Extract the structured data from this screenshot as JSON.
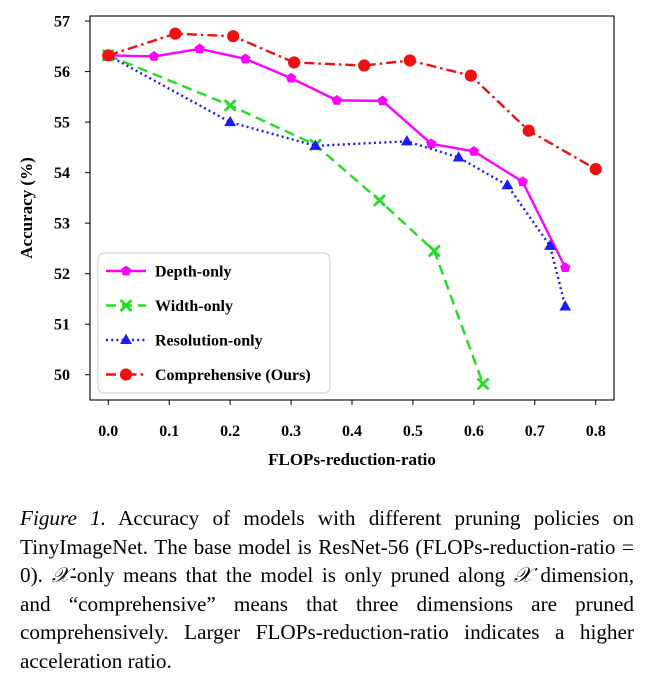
{
  "chart_data": {
    "type": "line",
    "xlabel": "FLOPs-reduction-ratio",
    "ylabel": "Accuracy (%)",
    "xlim": [
      -0.03,
      0.83
    ],
    "ylim": [
      49.5,
      57.1
    ],
    "xticks": [
      0.0,
      0.1,
      0.2,
      0.3,
      0.4,
      0.5,
      0.6,
      0.7,
      0.8
    ],
    "xtick_labels": [
      "0.0",
      "0.1",
      "0.2",
      "0.3",
      "0.4",
      "0.5",
      "0.6",
      "0.7",
      "0.8"
    ],
    "yticks": [
      50,
      51,
      52,
      53,
      54,
      55,
      56,
      57
    ],
    "ytick_labels": [
      "50",
      "51",
      "52",
      "53",
      "54",
      "55",
      "56",
      "57"
    ],
    "grid": false,
    "legend_position": "bottom-left",
    "series": [
      {
        "name": "Depth-only",
        "color": "#ff00ff",
        "line_style": "solid",
        "marker": "pentagon",
        "points": [
          [
            0.0,
            56.32
          ],
          [
            0.075,
            56.3
          ],
          [
            0.15,
            56.45
          ],
          [
            0.225,
            56.25
          ],
          [
            0.3,
            55.87
          ],
          [
            0.375,
            55.43
          ],
          [
            0.45,
            55.42
          ],
          [
            0.53,
            54.57
          ],
          [
            0.6,
            54.42
          ],
          [
            0.68,
            53.82
          ],
          [
            0.75,
            52.12
          ]
        ]
      },
      {
        "name": "Width-only",
        "color": "#22dd22",
        "line_style": "dashed",
        "marker": "x",
        "points": [
          [
            0.0,
            56.32
          ],
          [
            0.2,
            55.33
          ],
          [
            0.34,
            54.55
          ],
          [
            0.445,
            53.45
          ],
          [
            0.535,
            52.45
          ],
          [
            0.615,
            49.82
          ]
        ]
      },
      {
        "name": "Resolution-only",
        "color": "#1a1aff",
        "line_style": "dotted",
        "marker": "triangle",
        "points": [
          [
            0.0,
            56.32
          ],
          [
            0.2,
            55.0
          ],
          [
            0.34,
            54.53
          ],
          [
            0.49,
            54.62
          ],
          [
            0.575,
            54.3
          ],
          [
            0.655,
            53.75
          ],
          [
            0.725,
            52.55
          ],
          [
            0.75,
            51.35
          ]
        ]
      },
      {
        "name": "Comprehensive (Ours)",
        "color": "#ee1111",
        "line_style": "dashdot",
        "marker": "circle",
        "points": [
          [
            0.0,
            56.32
          ],
          [
            0.11,
            56.75
          ],
          [
            0.205,
            56.7
          ],
          [
            0.305,
            56.18
          ],
          [
            0.42,
            56.12
          ],
          [
            0.495,
            56.22
          ],
          [
            0.595,
            55.92
          ],
          [
            0.69,
            54.83
          ],
          [
            0.8,
            54.07
          ]
        ]
      }
    ]
  },
  "caption": {
    "label": "Figure 1.",
    "part1": " Accuracy of models with different pruning policies on TinyImageNet. The base model is ResNet-56 (FLOPs-reduction-ratio = 0). ",
    "x1": "𝒳",
    "part2": "-only means that the model is only pruned along ",
    "x2": "𝒳",
    "part3": " dimension, and “comprehensive” means that three dimensions are pruned comprehensively. Larger FLOPs-reduction-ratio indicates a higher acceleration ratio."
  }
}
